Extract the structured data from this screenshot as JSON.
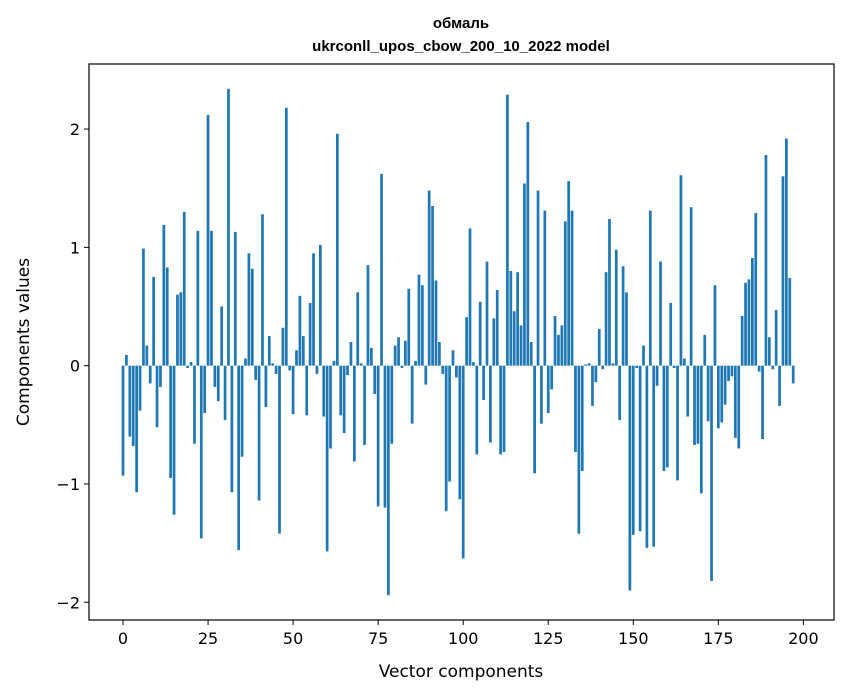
{
  "chart_data": {
    "type": "bar",
    "title_line1": "обмаль",
    "title_line2": "ukrconll_upos_cbow_200_10_2022 model",
    "xlabel": "Vector components",
    "ylabel": "Components values",
    "xlim": [
      -10,
      209
    ],
    "ylim": [
      -2.15,
      2.55
    ],
    "x_ticks": [
      0,
      25,
      50,
      75,
      100,
      125,
      150,
      175,
      200
    ],
    "x_tick_labels": [
      "0",
      "25",
      "50",
      "75",
      "100",
      "125",
      "150",
      "175",
      "200"
    ],
    "y_ticks": [
      -2,
      -1,
      0,
      1,
      2
    ],
    "y_tick_labels": [
      "−2",
      "−1",
      "0",
      "1",
      "2"
    ],
    "grid": false,
    "bar_color": "#1f77b4",
    "values": [
      -0.93,
      0.09,
      -0.6,
      -0.68,
      -1.07,
      -0.38,
      0.99,
      0.17,
      -0.15,
      0.75,
      -0.52,
      -0.18,
      1.19,
      0.83,
      -0.95,
      -1.26,
      0.6,
      0.62,
      1.3,
      -0.02,
      0.03,
      -0.66,
      1.14,
      -1.46,
      -0.4,
      2.12,
      1.14,
      -0.18,
      -0.3,
      0.5,
      -0.46,
      2.34,
      -1.07,
      1.13,
      -1.56,
      -0.77,
      0.06,
      0.95,
      0.82,
      -0.12,
      -1.14,
      1.28,
      -0.35,
      0.25,
      0.02,
      -0.07,
      -1.42,
      0.32,
      2.18,
      -0.04,
      -0.41,
      0.13,
      0.59,
      0.25,
      -0.42,
      0.53,
      0.95,
      -0.07,
      1.02,
      -0.43,
      -1.57,
      -0.7,
      0.04,
      1.96,
      -0.42,
      -0.57,
      -0.08,
      0.2,
      -0.81,
      0.62,
      0.02,
      -0.67,
      0.85,
      0.15,
      -0.24,
      -1.19,
      1.62,
      -1.2,
      -1.94,
      -0.66,
      0.17,
      0.24,
      -0.02,
      0.21,
      0.65,
      -0.49,
      0.04,
      0.77,
      0.68,
      -0.16,
      1.48,
      1.35,
      0.72,
      0.2,
      -0.07,
      -1.23,
      -0.98,
      0.13,
      -0.1,
      -1.13,
      -1.63,
      0.41,
      1.16,
      0.03,
      -0.75,
      0.54,
      -0.29,
      0.88,
      -0.65,
      0.4,
      0.64,
      -0.75,
      -0.73,
      2.29,
      0.8,
      0.46,
      0.79,
      0.34,
      1.54,
      2.06,
      0.2,
      -0.91,
      1.48,
      -0.49,
      1.31,
      -0.4,
      -0.2,
      0.42,
      0.26,
      0.34,
      1.22,
      1.56,
      1.31,
      -0.73,
      -1.42,
      -0.89,
      0.01,
      0.02,
      -0.34,
      -0.14,
      0.31,
      -0.03,
      0.79,
      1.24,
      0.02,
      0.98,
      -0.46,
      0.84,
      0.62,
      -1.9,
      -1.43,
      -0.02,
      -1.4,
      0.17,
      -1.54,
      1.31,
      -1.53,
      -0.17,
      0.88,
      -0.89,
      -0.86,
      0.53,
      -0.02,
      -0.97,
      1.61,
      0.06,
      -0.43,
      1.34,
      -0.67,
      -0.66,
      -1.08,
      0.26,
      -0.47,
      -1.82,
      0.68,
      -0.53,
      -0.48,
      -0.33,
      -0.13,
      -0.09,
      -0.61,
      -0.7,
      0.42,
      0.7,
      0.73,
      0.91,
      1.29,
      -0.05,
      -0.62,
      1.78,
      0.24,
      -0.03,
      0.47,
      -0.34,
      1.6,
      1.92,
      0.74,
      -0.15
    ]
  }
}
